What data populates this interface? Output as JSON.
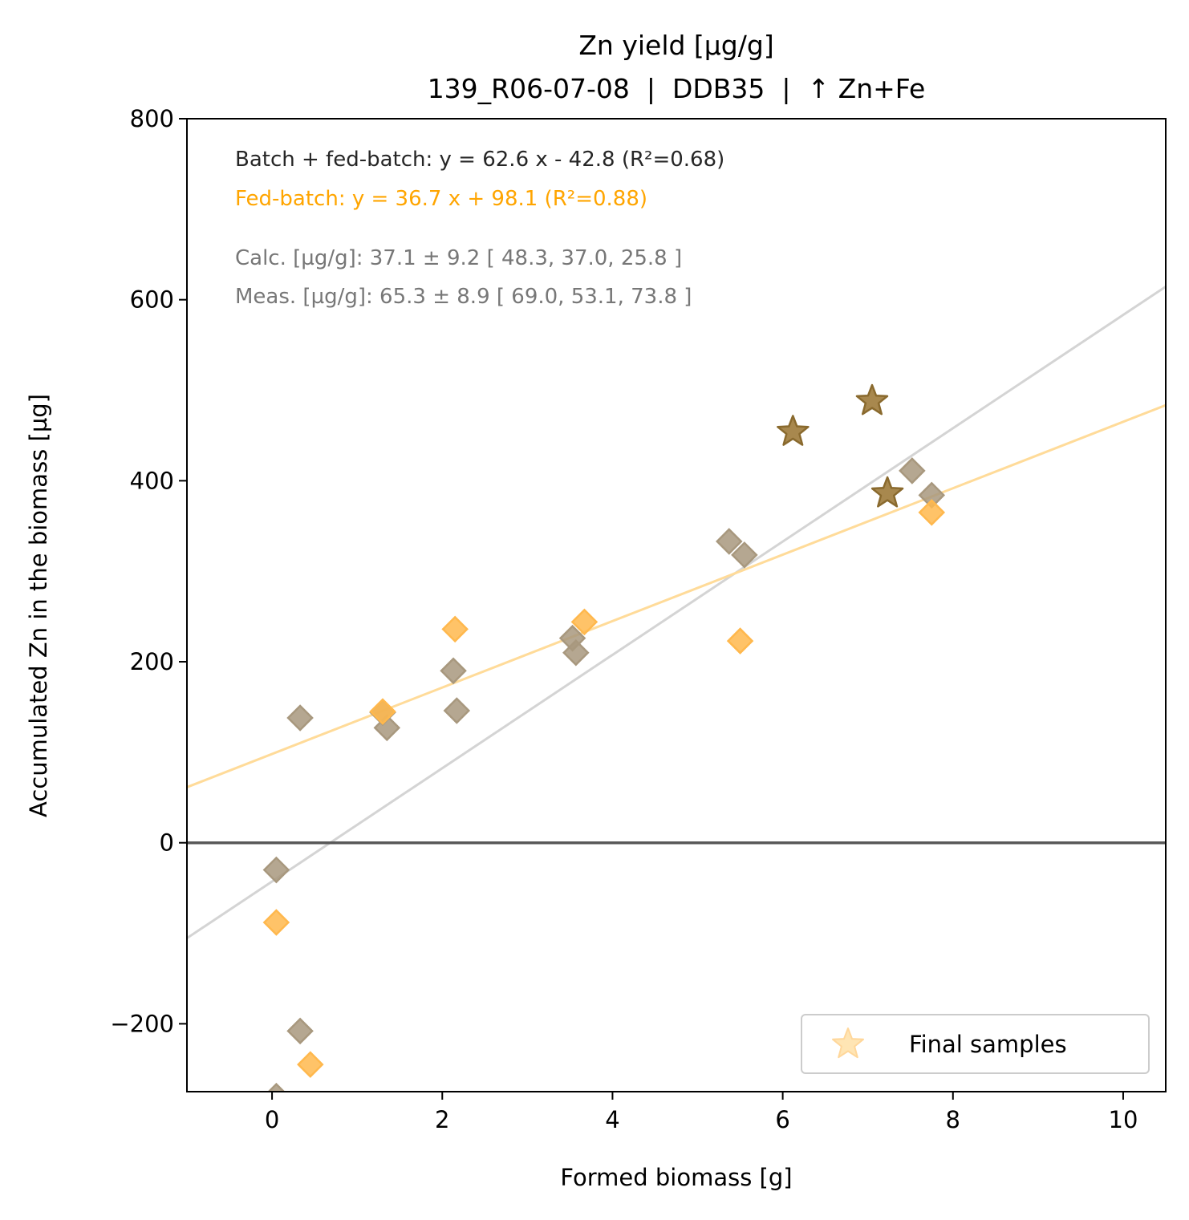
{
  "chart_data": {
    "type": "scatter",
    "title": "Zn yield [µg/g]",
    "subtitle": "139_R06-07-08  |  DDB35  |  ↑ Zn+Fe",
    "xlabel": "Formed biomass [g]",
    "ylabel": "Accumulated Zn in the biomass [µg]",
    "xlim": [
      -1.0,
      10.5
    ],
    "ylim": [
      -275,
      800
    ],
    "xticks": [
      0,
      2,
      4,
      6,
      8,
      10
    ],
    "yticks": [
      -200,
      0,
      200,
      400,
      600,
      800
    ],
    "xtick_labels": [
      "0",
      "2",
      "4",
      "6",
      "8",
      "10"
    ],
    "ytick_labels": [
      "−200",
      "0",
      "200",
      "400",
      "600",
      "800"
    ],
    "grid": false,
    "legend_position": "lower-right",
    "legend": [
      {
        "label": "Final samples",
        "marker": "star",
        "color": "#ffe5b4"
      }
    ],
    "annotations": [
      {
        "text": "Batch + fed-batch: y = 62.6 x - 42.8 (R²=0.68)",
        "color": "#262626"
      },
      {
        "text": "Fed-batch: y = 36.7 x + 98.1 (R²=0.88)",
        "color": "#ffa500"
      },
      {
        "text": "Calc. [µg/g]: 37.1 ± 9.2 [ 48.3, 37.0, 25.8 ]",
        "color": "#777777"
      },
      {
        "text": "Meas. [µg/g]: 65.3 ± 8.9 [ 69.0, 53.1, 73.8 ]",
        "color": "#777777"
      }
    ],
    "fits": [
      {
        "slope": 62.6,
        "intercept": -42.8,
        "color": "#d4d4d4"
      },
      {
        "slope": 36.7,
        "intercept": 98.1,
        "color": "#ffdb99"
      }
    ],
    "zero_line": {
      "y": 0,
      "color": "#595959"
    },
    "series": [
      {
        "marker": "diamond",
        "color": "#a8987e",
        "points": [
          [
            0.05,
            -30
          ],
          [
            0.05,
            -280
          ],
          [
            0.33,
            138
          ],
          [
            0.33,
            -208
          ],
          [
            1.3,
            144
          ],
          [
            1.35,
            127
          ],
          [
            2.13,
            190
          ],
          [
            2.17,
            146
          ],
          [
            3.53,
            226
          ],
          [
            3.57,
            210
          ],
          [
            5.37,
            333
          ],
          [
            5.55,
            318
          ],
          [
            7.52,
            411
          ],
          [
            7.75,
            384
          ]
        ]
      },
      {
        "marker": "diamond",
        "color": "#ffb84d",
        "points": [
          [
            0.05,
            -88
          ],
          [
            0.45,
            -245
          ],
          [
            1.3,
            145
          ],
          [
            2.15,
            236
          ],
          [
            3.67,
            244
          ],
          [
            5.5,
            223
          ],
          [
            7.75,
            365
          ]
        ]
      },
      {
        "marker": "star",
        "color": "#a8884e",
        "points": [
          [
            6.12,
            454
          ],
          [
            7.05,
            488
          ],
          [
            7.23,
            386
          ]
        ]
      }
    ]
  }
}
